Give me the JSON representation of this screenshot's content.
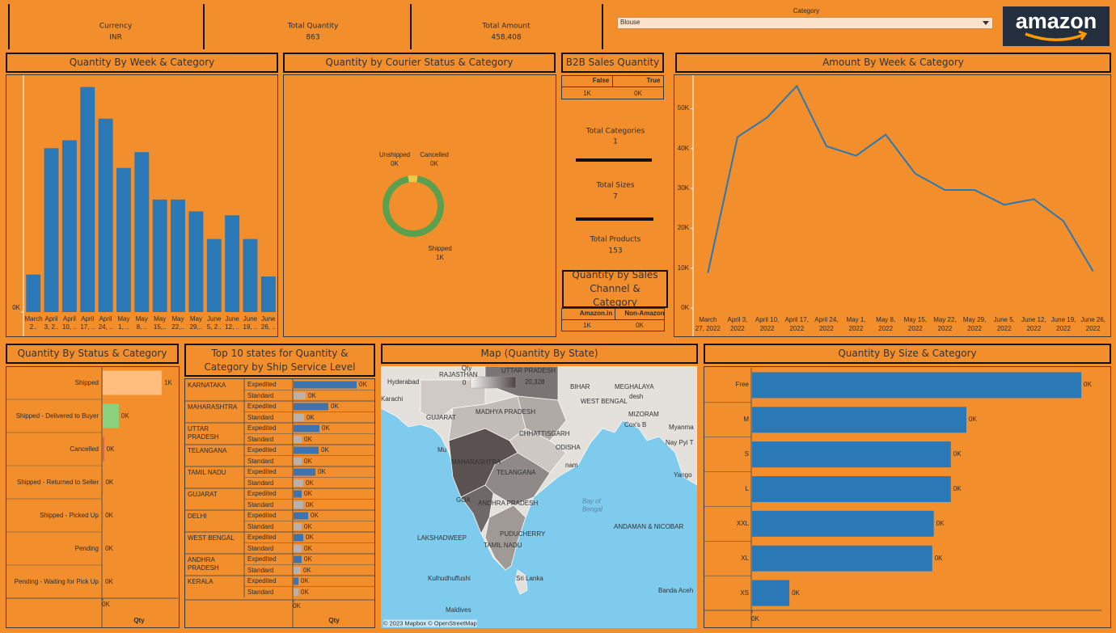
{
  "header": {
    "kpis": [
      {
        "label": "Currency",
        "value": "INR"
      },
      {
        "label": "Total Quantity",
        "value": "863"
      },
      {
        "label": "Total Amount",
        "value": "458,408"
      }
    ],
    "filter": {
      "label": "Category",
      "value": "Blouse"
    },
    "logo": "amazon"
  },
  "b2b": {
    "title": "B2B Sales Quantity",
    "columns": [
      "False",
      "True"
    ],
    "values": [
      "1K",
      "0K"
    ]
  },
  "totals": [
    {
      "label": "Total Categories",
      "value": "1"
    },
    {
      "label": "Total Sizes",
      "value": "7"
    },
    {
      "label": "Total Products",
      "value": "153"
    }
  ],
  "channel": {
    "title": "Quantity by Sales Channel & Category",
    "columns": [
      "Amazon.in",
      "Non-Amazon"
    ],
    "values": [
      "1K",
      "0K"
    ]
  },
  "map": {
    "title": "Map (Quantity By State)",
    "legend": {
      "title": "Qty",
      "min": "0",
      "max": "20,328"
    },
    "labels": [
      "Hyderabad",
      "Karachi",
      "RAJASTHAN",
      "UTTAR PRADESH",
      "BIHAR",
      "MEGHALAYA",
      "desh",
      "WEST BENGAL",
      "GUJARAT",
      "MADHYA PRADESH",
      "MIZORAM",
      "Cox's B",
      "Myanma",
      "CHHATTISGARH",
      "Nay Pyi T",
      "Mu",
      "ODISHA",
      "MAHARASHTRA",
      "TELANGANA",
      "nam",
      "Yango",
      "GOA",
      "ANDHRA PRADESH",
      "Bay of Bengal",
      "LAKSHADWEEP",
      "ANDAMAN & NICOBAR",
      "PUDUCHERRY",
      "TAMIL NADU",
      "Kulhudhuffushi",
      "Sri Lanka",
      "Maldives",
      "Banda Aceh"
    ],
    "attribution": "© 2023 Mapbox  © OpenStreetMap"
  },
  "chart_data": [
    {
      "type": "bar",
      "title": "Quantity By Week & Category",
      "categories": [
        "March 2..",
        "April 3, 2..",
        "April 10, ..",
        "April 17, ..",
        "April 24, ..",
        "May 1, ..",
        "May 8, ..",
        "May 15,..",
        "May 22,..",
        "May 29,..",
        "June 5, 2..",
        "June 12, ..",
        "June 19, ..",
        "June 26, .."
      ],
      "values": [
        19,
        83,
        87,
        114,
        98,
        73,
        81,
        57,
        57,
        51,
        37,
        49,
        37,
        18
      ],
      "color": "#2a78b5",
      "ylim": [
        0,
        120
      ],
      "yticks": [
        {
          "value": 0,
          "label": "0K"
        }
      ]
    },
    {
      "type": "donut",
      "title": "Quantity by Courier Status & Category",
      "categories": [
        "Shipped",
        "Unshipped",
        "Cancelled"
      ],
      "values": [
        817,
        44,
        2
      ],
      "value_labels": [
        "1K",
        "0K",
        "0K"
      ],
      "colors": [
        "#59a14f",
        "#edc948",
        "#e15759"
      ]
    },
    {
      "type": "line",
      "title": "Amount By Week & Category",
      "categories": [
        "March 27, 2022",
        "April 3, 2022",
        "April 10, 2022",
        "April 17, 2022",
        "April 24, 2022",
        "May 1, 2022",
        "May 8, 2022",
        "May 15, 2022",
        "May 22, 2022",
        "May 29, 2022",
        "June 5, 2022",
        "June 12, 2022",
        "June 19, 2022",
        "June 26, 2022"
      ],
      "values": [
        8800,
        42900,
        47800,
        55700,
        40600,
        38200,
        43500,
        33700,
        29600,
        29600,
        25900,
        27300,
        21800,
        9200
      ],
      "color": "#2a78b5",
      "ylim": [
        0,
        58000
      ],
      "yticks": [
        {
          "value": 0,
          "label": "0K"
        },
        {
          "value": 10000,
          "label": "10K"
        },
        {
          "value": 20000,
          "label": "20K"
        },
        {
          "value": 30000,
          "label": "30K"
        },
        {
          "value": 40000,
          "label": "40K"
        },
        {
          "value": 50000,
          "label": "50K"
        }
      ]
    },
    {
      "type": "hbar",
      "title": "Quantity By Status & Category",
      "categories": [
        "Shipped",
        "Shipped - Delivered to Buyer",
        "Cancelled",
        "Shipped - Returned to Seller",
        "Shipped - Picked Up",
        "Pending",
        "Pending - Waiting for Pick Up"
      ],
      "values": [
        660,
        180,
        15,
        4,
        2,
        1,
        1
      ],
      "value_labels": [
        "1K",
        "0K",
        "0K",
        "0K",
        "0K",
        "0K",
        "0K"
      ],
      "colors": [
        "#ffbe7d",
        "#8cd17d",
        "#e15759",
        "#b6992d",
        "#499894",
        "#f1ce63",
        "#86bcb6"
      ],
      "xlim": [
        0,
        840
      ],
      "xticks": [
        {
          "value": 0,
          "label": "0K"
        }
      ],
      "x_label": "Qty"
    },
    {
      "type": "grouped_hbar",
      "title": "Top 10 states for Quantity & Category by Ship Service Level",
      "categories": [
        "KARNATAKA",
        "MAHARASHTRA",
        "UTTAR PRADESH",
        "TELANGANA",
        "TAMIL NADU",
        "GUJARAT",
        "DELHI",
        "WEST BENGAL",
        "ANDHRA PRADESH",
        "KERALA"
      ],
      "series": [
        {
          "name": "Expedited",
          "color": "#3d74b0",
          "values": [
            78,
            43,
            32,
            31,
            27,
            10,
            18,
            12,
            10,
            6
          ],
          "value_labels": [
            "0K",
            "0K",
            "0K",
            "0K",
            "0K",
            "0K",
            "0K",
            "0K",
            "0K",
            "0K"
          ]
        },
        {
          "name": "Standard",
          "color": "#bab0ac",
          "values": [
            15,
            13,
            10,
            10,
            12,
            12,
            10,
            10,
            9,
            6
          ],
          "value_labels": [
            "0K",
            "0K",
            "0K",
            "0K",
            "0K",
            "0K",
            "0K",
            "0K",
            "0K",
            "0K"
          ]
        }
      ],
      "xlim": [
        0,
        100
      ],
      "xticks": [
        {
          "value": 0,
          "label": "0K"
        }
      ],
      "x_label": "Qty"
    },
    {
      "type": "hbar",
      "title": "Quantity By Size & Category",
      "categories": [
        "Free",
        "M",
        "S",
        "L",
        "XXL",
        "XL",
        "XS"
      ],
      "values": [
        212,
        138,
        128,
        128,
        117,
        116,
        24
      ],
      "value_labels": [
        "0K",
        "0K",
        "0K",
        "0K",
        "0K",
        "0K",
        "0K"
      ],
      "color": "#2a78b5",
      "xlim": [
        0,
        225
      ],
      "xticks": [
        {
          "value": 0,
          "label": "0K"
        }
      ]
    }
  ]
}
